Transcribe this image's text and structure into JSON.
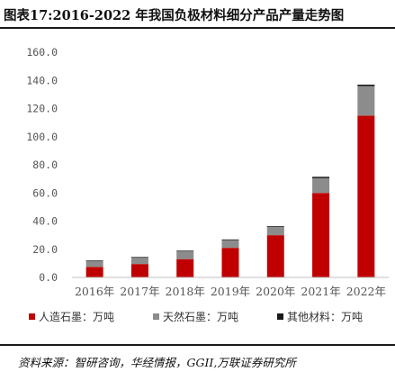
{
  "figure_title": "图表17:2016-2022 年我国负极材料细分产品产量走势图",
  "source_note": "资料来源：智研咨询，华经情报，GGII,万联证券研究所",
  "colors": {
    "artificial": "#c00000",
    "natural": "#8c8c8c",
    "other": "#1a1a1a",
    "axis_text": "#555555",
    "grid": "#d9d9d9"
  },
  "chart_data": {
    "type": "bar",
    "stacked": true,
    "categories": [
      "2016年",
      "2017年",
      "2018年",
      "2019年",
      "2020年",
      "2021年",
      "2022年"
    ],
    "series": [
      {
        "name": "人造石墨：万吨",
        "values": [
          7.5,
          9.5,
          13.0,
          21.0,
          30.0,
          60.0,
          115.0
        ]
      },
      {
        "name": "天然石墨：万吨",
        "values": [
          4.0,
          4.5,
          5.5,
          5.5,
          6.0,
          10.5,
          21.0
        ]
      },
      {
        "name": "其他材料：万吨",
        "values": [
          0.5,
          0.5,
          0.5,
          0.5,
          0.5,
          1.0,
          1.0
        ]
      }
    ],
    "yticks": [
      "0.0",
      "20.0",
      "40.0",
      "60.0",
      "80.0",
      "100.0",
      "120.0",
      "140.0",
      "160.0"
    ],
    "ylim": [
      0,
      160
    ],
    "grid": false,
    "legend_position": "bottom"
  }
}
